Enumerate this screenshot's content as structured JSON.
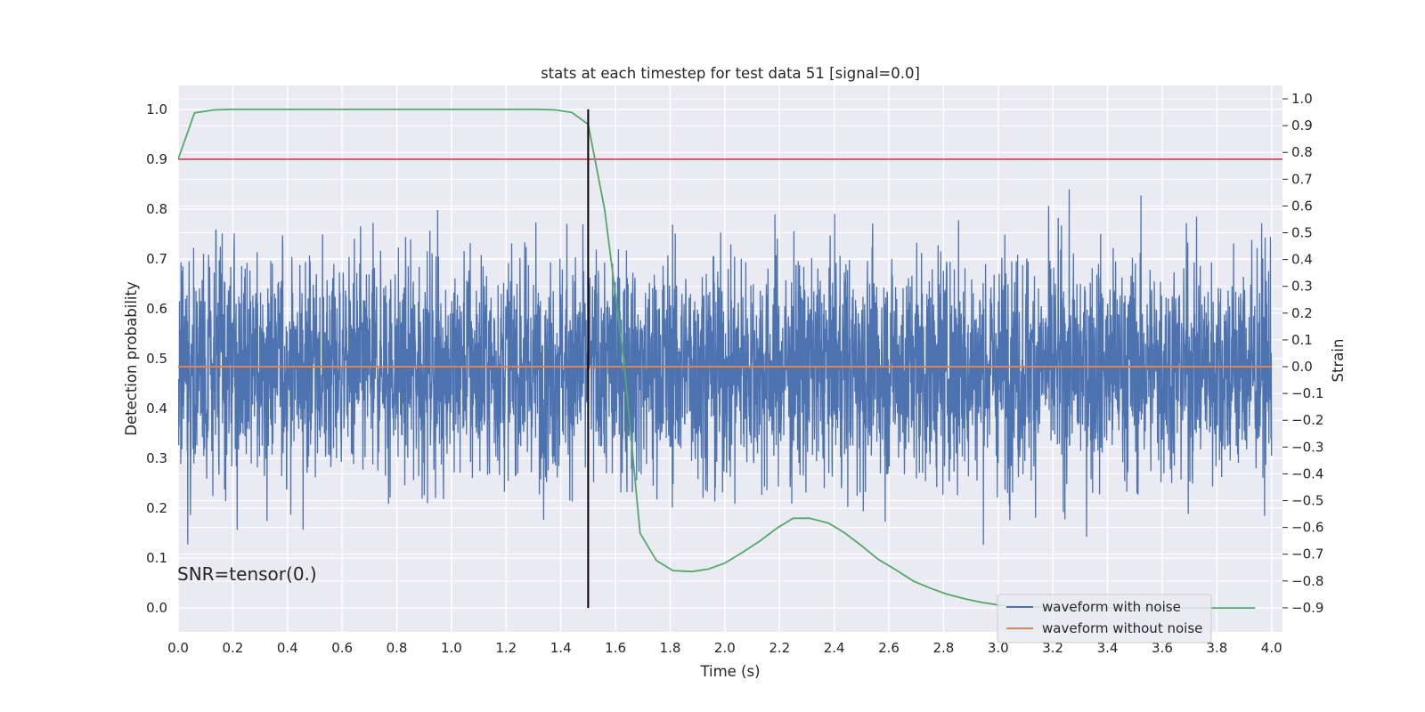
{
  "chart_data": {
    "type": "line",
    "title": "stats at each timestep for test data 51 [signal=0.0]",
    "xlabel": "Time (s)",
    "ylabel_left": "Detection probability",
    "ylabel_right": "Strain",
    "xlim": [
      0.0,
      4.04
    ],
    "ylim_left": [
      -0.048,
      1.048
    ],
    "ylim_right": [
      -0.99,
      1.05
    ],
    "x_ticks": [
      "0.0",
      "0.2",
      "0.4",
      "0.6",
      "0.8",
      "1.0",
      "1.2",
      "1.4",
      "1.6",
      "1.8",
      "2.0",
      "2.2",
      "2.4",
      "2.6",
      "2.8",
      "3.0",
      "3.2",
      "3.4",
      "3.6",
      "3.8",
      "4.0"
    ],
    "y_left_ticks": [
      "0.0",
      "0.1",
      "0.2",
      "0.3",
      "0.4",
      "0.5",
      "0.6",
      "0.7",
      "0.8",
      "0.9",
      "1.0"
    ],
    "y_right_ticks": [
      "−0.9",
      "−0.8",
      "−0.7",
      "−0.6",
      "−0.5",
      "−0.4",
      "−0.3",
      "−0.2",
      "−0.1",
      "0.0",
      "0.1",
      "0.2",
      "0.3",
      "0.4",
      "0.5",
      "0.6",
      "0.7",
      "0.8",
      "0.9",
      "1.0"
    ],
    "grid": true,
    "legend_placement": "lower-right",
    "threshold_line": {
      "y": 0.9,
      "axis": "left",
      "color": "#c44e52"
    },
    "vertical_marker": {
      "x": 1.5,
      "y_range": [
        0.0,
        1.0
      ],
      "color": "#000000"
    },
    "annotation": "SNR=tensor(0.)",
    "series": [
      {
        "name": "waveform with noise",
        "axis": "right",
        "color": "#4c72b0",
        "x_range": [
          0.0,
          4.0
        ],
        "points": 4096,
        "spread_range": [
          -0.9,
          1.0
        ],
        "center": 0.0
      },
      {
        "name": "waveform without noise",
        "axis": "right",
        "color": "#dd8452",
        "x": [
          0.0,
          4.0
        ],
        "y": [
          0.0,
          0.0
        ]
      },
      {
        "axis": "left",
        "color": "#55a868",
        "x": [
          0.0,
          0.06,
          0.13,
          0.19,
          0.25,
          0.31,
          0.38,
          0.44,
          0.5,
          0.56,
          0.63,
          0.69,
          0.75,
          0.81,
          0.88,
          0.94,
          1.0,
          1.06,
          1.13,
          1.19,
          1.25,
          1.31,
          1.38,
          1.44,
          1.5,
          1.56,
          1.63,
          1.69,
          1.75,
          1.81,
          1.88,
          1.94,
          2.0,
          2.06,
          2.13,
          2.19,
          2.25,
          2.31,
          2.38,
          2.44,
          2.5,
          2.56,
          2.63,
          2.69,
          2.75,
          2.81,
          2.88,
          2.94,
          3.0,
          3.06,
          3.13,
          3.19,
          3.25,
          3.31,
          3.38,
          3.44,
          3.5,
          3.56,
          3.63,
          3.69,
          3.75,
          3.81,
          3.88,
          3.94
        ],
        "y": [
          0.9,
          0.993,
          0.999,
          1.0,
          1.0,
          1.0,
          1.0,
          1.0,
          1.0,
          1.0,
          1.0,
          1.0,
          1.0,
          1.0,
          1.0,
          1.0,
          1.0,
          1.0,
          1.0,
          1.0,
          1.0,
          1.0,
          0.999,
          0.994,
          0.97,
          0.8,
          0.5,
          0.15,
          0.095,
          0.075,
          0.073,
          0.078,
          0.09,
          0.11,
          0.135,
          0.16,
          0.18,
          0.18,
          0.17,
          0.15,
          0.125,
          0.098,
          0.075,
          0.054,
          0.04,
          0.028,
          0.018,
          0.011,
          0.006,
          0.003,
          0.002,
          0.001,
          0.0,
          0.0,
          0.0,
          0.0,
          0.0,
          0.0,
          0.0,
          0.0,
          0.0,
          0.0,
          0.0,
          0.0
        ]
      }
    ]
  }
}
